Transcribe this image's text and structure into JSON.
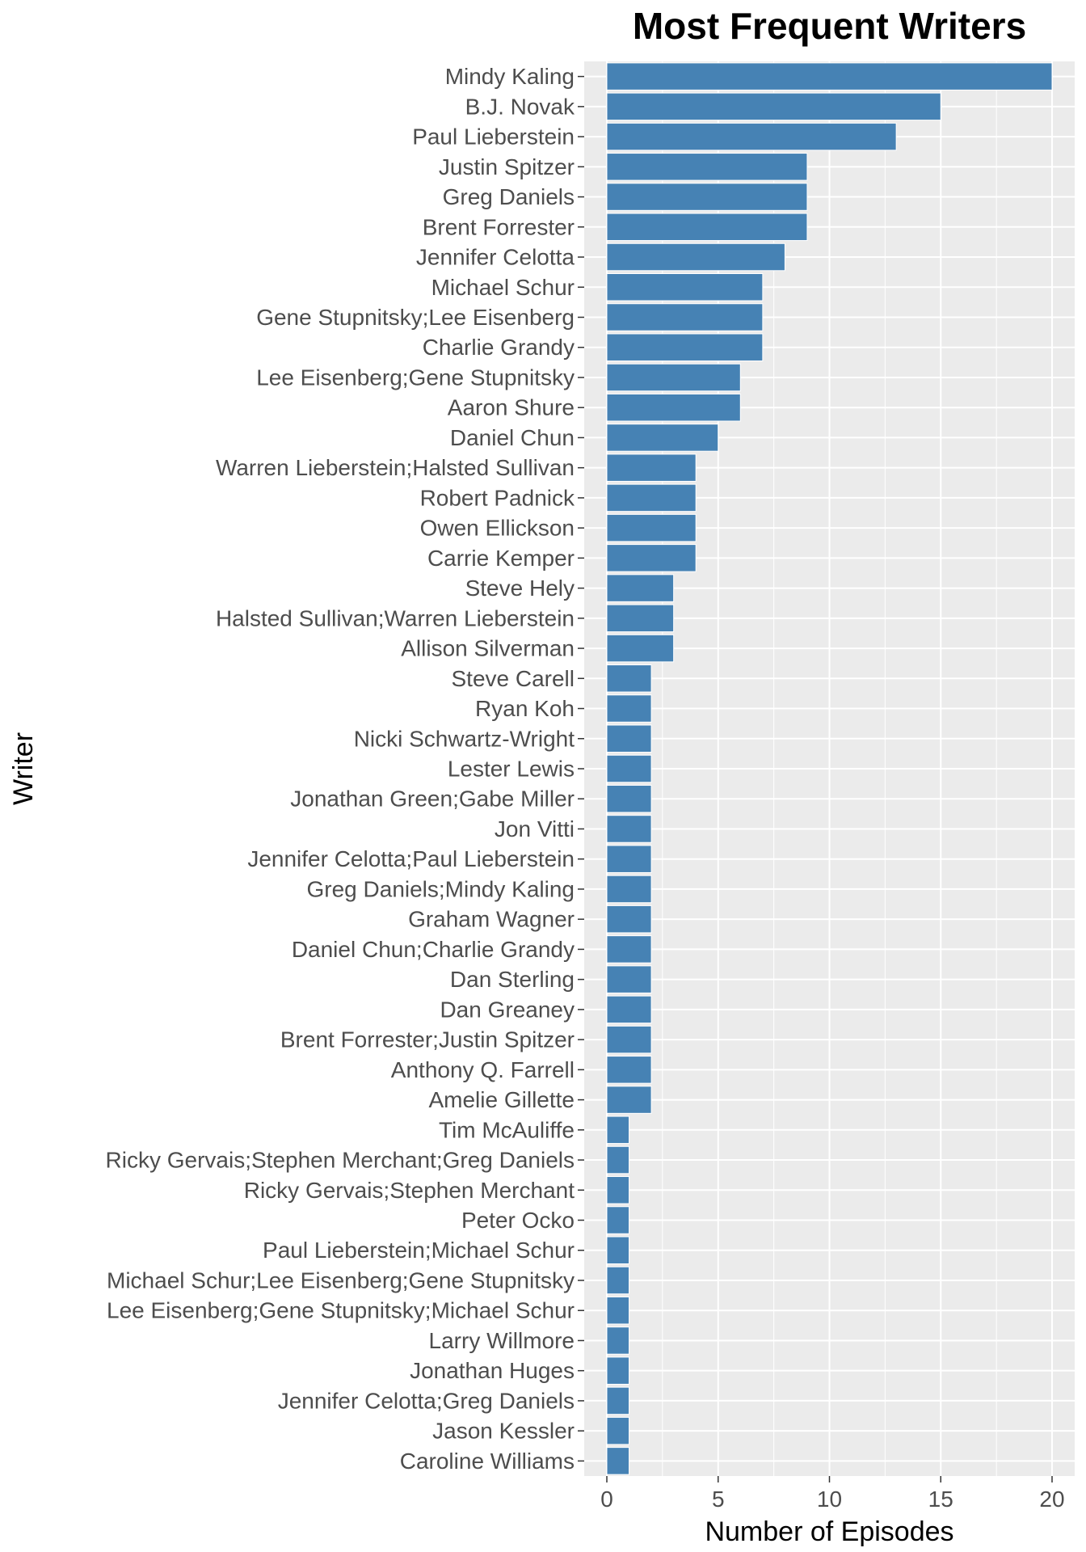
{
  "chart_data": {
    "type": "bar",
    "orientation": "horizontal",
    "title": "Most Frequent Writers",
    "xlabel": "Number of Episodes",
    "ylabel": "Writer",
    "xlim": [
      0,
      20
    ],
    "xticks": [
      0,
      5,
      10,
      15,
      20
    ],
    "grid": true,
    "bar_color": "#4682B4",
    "panel_color": "#EBEBEB",
    "categories": [
      "Mindy Kaling",
      "B.J. Novak",
      "Paul Lieberstein",
      "Justin Spitzer",
      "Greg Daniels",
      "Brent Forrester",
      "Jennifer Celotta",
      "Michael Schur",
      "Gene Stupnitsky;Lee Eisenberg",
      "Charlie Grandy",
      "Lee Eisenberg;Gene Stupnitsky",
      "Aaron Shure",
      "Daniel Chun",
      "Warren Lieberstein;Halsted Sullivan",
      "Robert Padnick",
      "Owen Ellickson",
      "Carrie Kemper",
      "Steve Hely",
      "Halsted Sullivan;Warren Lieberstein",
      "Allison Silverman",
      "Steve Carell",
      "Ryan Koh",
      "Nicki Schwartz-Wright",
      "Lester Lewis",
      "Jonathan Green;Gabe Miller",
      "Jon Vitti",
      "Jennifer Celotta;Paul Lieberstein",
      "Greg Daniels;Mindy Kaling",
      "Graham Wagner",
      "Daniel Chun;Charlie Grandy",
      "Dan Sterling",
      "Dan Greaney",
      "Brent Forrester;Justin Spitzer",
      "Anthony Q. Farrell",
      "Amelie Gillette",
      "Tim McAuliffe",
      "Ricky Gervais;Stephen Merchant;Greg Daniels",
      "Ricky Gervais;Stephen Merchant",
      "Peter Ocko",
      "Paul Lieberstein;Michael Schur",
      "Michael Schur;Lee Eisenberg;Gene Stupnitsky",
      "Lee Eisenberg;Gene Stupnitsky;Michael Schur",
      "Larry Willmore",
      "Jonathan Huges",
      "Jennifer Celotta;Greg Daniels",
      "Jason Kessler",
      "Caroline Williams"
    ],
    "values": [
      20,
      15,
      13,
      9,
      9,
      9,
      8,
      7,
      7,
      7,
      6,
      6,
      5,
      4,
      4,
      4,
      4,
      3,
      3,
      3,
      2,
      2,
      2,
      2,
      2,
      2,
      2,
      2,
      2,
      2,
      2,
      2,
      2,
      2,
      2,
      1,
      1,
      1,
      1,
      1,
      1,
      1,
      1,
      1,
      1,
      1,
      1
    ]
  }
}
